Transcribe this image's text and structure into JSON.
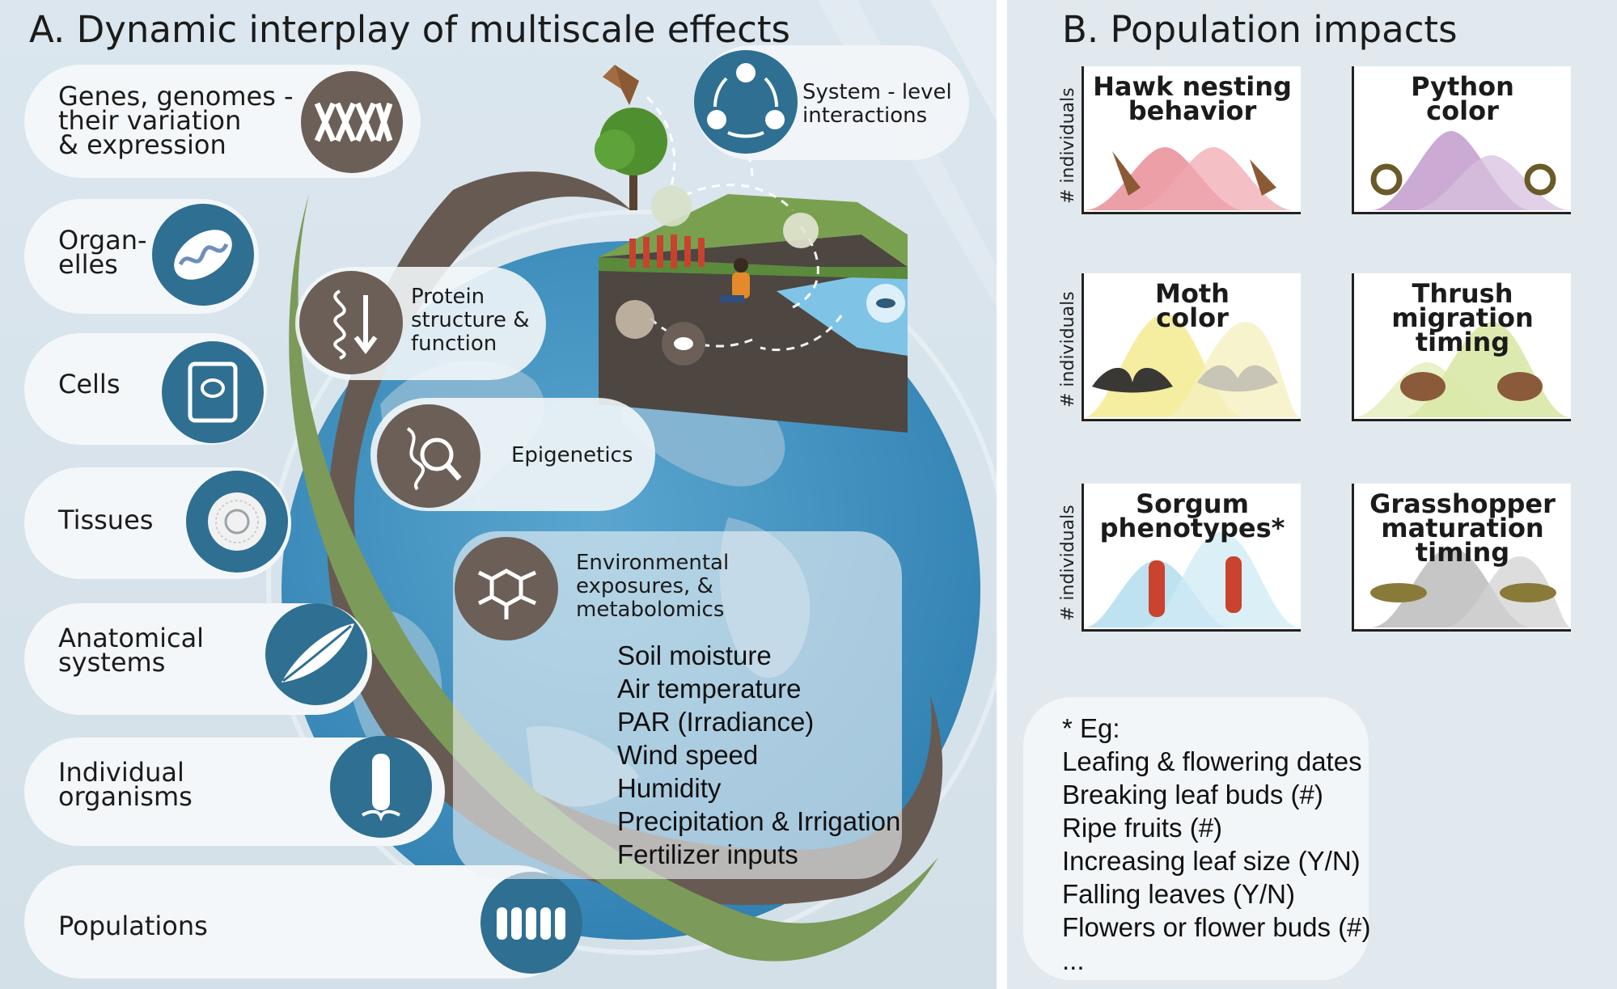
{
  "panel_a": {
    "title": "A. Dynamic interplay of multiscale effects",
    "scales": [
      {
        "label": "Genes, genomes -\ntheir variation\n& expression",
        "icon": "dna-icon"
      },
      {
        "label": "Organ-\nelles",
        "icon": "mitochondrion-icon"
      },
      {
        "label": "Cells",
        "icon": "cell-icon"
      },
      {
        "label": "Tissues",
        "icon": "tissue-icon"
      },
      {
        "label": "Anatomical\nsystems",
        "icon": "leaf-icon"
      },
      {
        "label": "Individual\norganisms",
        "icon": "sorghum-head-icon"
      },
      {
        "label": "Populations",
        "icon": "sorghum-population-icon"
      }
    ],
    "system_label": "System - level\ninteractions",
    "protein_label": "Protein\nstructure &\nfunction",
    "epigenetics_label": "Epigenetics",
    "environment_label": "Environmental\nexposures, &\nmetabolomics",
    "environment_factors": [
      "Soil moisture",
      "Air temperature",
      "PAR (Irradiance)",
      "Wind speed",
      "Humidity",
      "Precipitation & Irrigation",
      "Fertilizer inputs"
    ]
  },
  "panel_b": {
    "title": "B. Population impacts",
    "y_axis_label": "# individuals",
    "cards": [
      {
        "title": "Hawk nesting\nbehavior",
        "color": "#e57f8a",
        "icon": "hawk-icon"
      },
      {
        "title": "Python\ncolor",
        "color": "#b98ec4",
        "icon": "python-icon"
      },
      {
        "title": "Moth\ncolor",
        "color": "#f2ea8a",
        "icon": "moth-icon"
      },
      {
        "title": "Thrush\nmigration timing",
        "color": "#d9e8a6",
        "icon": "thrush-icon"
      },
      {
        "title": "Sorgum\nphenotypes*",
        "color": "#a9d8ec",
        "icon": "sorghum-icon"
      },
      {
        "title": "Grasshopper\nmaturation\ntiming",
        "color": "#b3b3b3",
        "icon": "grasshopper-icon"
      }
    ],
    "note": {
      "header": "* Eg:",
      "items": [
        "Leafing & flowering dates",
        "Breaking leaf buds (#)",
        "Ripe fruits (#)",
        "Increasing leaf size (Y/N)",
        "Falling leaves (Y/N)",
        "Flowers or flower buds (#)",
        "..."
      ]
    }
  }
}
